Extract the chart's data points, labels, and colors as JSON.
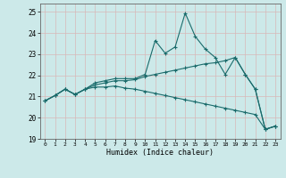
{
  "xlabel": "Humidex (Indice chaleur)",
  "xlim": [
    -0.5,
    23.5
  ],
  "ylim": [
    19,
    25.4
  ],
  "yticks": [
    19,
    20,
    21,
    22,
    23,
    24,
    25
  ],
  "xticks": [
    0,
    1,
    2,
    3,
    4,
    5,
    6,
    7,
    8,
    9,
    10,
    11,
    12,
    13,
    14,
    15,
    16,
    17,
    18,
    19,
    20,
    21,
    22,
    23
  ],
  "bg_color": "#cce9e9",
  "line_color": "#1a6b6b",
  "line1": [
    20.8,
    21.05,
    21.35,
    21.1,
    21.35,
    21.65,
    21.75,
    21.85,
    21.85,
    21.85,
    22.05,
    23.65,
    23.05,
    23.35,
    24.95,
    23.85,
    23.25,
    22.85,
    22.05,
    22.85,
    22.05,
    21.35,
    19.45,
    19.6
  ],
  "line2": [
    20.8,
    21.05,
    21.35,
    21.1,
    21.35,
    21.55,
    21.65,
    21.75,
    21.75,
    21.8,
    21.95,
    22.05,
    22.15,
    22.25,
    22.35,
    22.45,
    22.55,
    22.6,
    22.7,
    22.85,
    22.05,
    21.35,
    19.45,
    19.6
  ],
  "line3": [
    20.8,
    21.05,
    21.35,
    21.1,
    21.35,
    21.45,
    21.45,
    21.5,
    21.4,
    21.35,
    21.25,
    21.15,
    21.05,
    20.95,
    20.85,
    20.75,
    20.65,
    20.55,
    20.45,
    20.35,
    20.25,
    20.15,
    19.45,
    19.6
  ]
}
